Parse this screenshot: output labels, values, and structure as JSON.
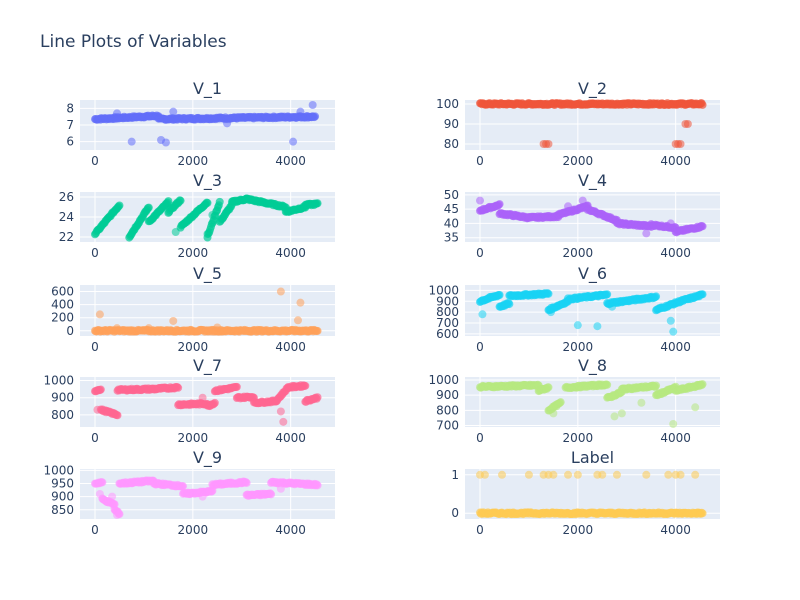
{
  "title": "Line Plots of Variables",
  "chart_data": {
    "type": "scatter",
    "x_range": [
      0,
      4600
    ],
    "colors": [
      "#636efa",
      "#ef553b",
      "#00cc96",
      "#ab63fa",
      "#ffa15a",
      "#19d3f3",
      "#ff6692",
      "#b6e880",
      "#ff97ff",
      "#fecb52"
    ],
    "panels": [
      {
        "name": "V_1",
        "ylim": [
          5.5,
          8.5
        ],
        "yticks": [
          6,
          7,
          8
        ],
        "xticks": [
          0,
          2000,
          4000
        ],
        "segments": [
          [
            0,
            1300,
            7.35,
            7.55
          ],
          [
            1300,
            4500,
            7.35,
            7.5
          ]
        ],
        "points": [
          [
            750,
            6.0
          ],
          [
            1350,
            6.1
          ],
          [
            1450,
            5.95
          ],
          [
            1600,
            7.8
          ],
          [
            4050,
            6.0
          ],
          [
            4200,
            7.8
          ],
          [
            4450,
            8.2
          ],
          [
            2700,
            7.1
          ],
          [
            450,
            7.7
          ]
        ]
      },
      {
        "name": "V_2",
        "ylim": [
          77,
          102
        ],
        "yticks": [
          80,
          90,
          100
        ],
        "xticks": [
          0,
          2000,
          4000
        ],
        "segments": [
          [
            0,
            4550,
            100,
            100
          ]
        ],
        "points": [
          [
            1300,
            80
          ],
          [
            1350,
            80
          ],
          [
            1400,
            80
          ],
          [
            4000,
            80
          ],
          [
            4050,
            80
          ],
          [
            4100,
            80
          ],
          [
            4200,
            90
          ],
          [
            4250,
            90
          ]
        ]
      },
      {
        "name": "V_3",
        "ylim": [
          21.5,
          26.5
        ],
        "yticks": [
          22,
          24,
          26
        ],
        "xticks": [
          0,
          2000,
          4000
        ],
        "segments": [
          [
            0,
            500,
            22.3,
            25.2
          ],
          [
            700,
            1100,
            22.0,
            25.0
          ],
          [
            1100,
            1500,
            23.5,
            25.5
          ],
          [
            1500,
            1750,
            24.5,
            25.7
          ],
          [
            1750,
            2300,
            23.0,
            25.5
          ],
          [
            2300,
            2550,
            22.0,
            25.5
          ],
          [
            2550,
            2800,
            23.5,
            25.2
          ],
          [
            2800,
            3100,
            25.5,
            25.8
          ],
          [
            3100,
            3900,
            25.8,
            25.0
          ],
          [
            3900,
            4300,
            24.5,
            25.0
          ],
          [
            4300,
            4550,
            25.2,
            25.3
          ]
        ],
        "points": [
          [
            1650,
            22.5
          ],
          [
            2300,
            22.3
          ],
          [
            2400,
            24.2
          ]
        ]
      },
      {
        "name": "V_4",
        "ylim": [
          33.5,
          51
        ],
        "yticks": [
          35,
          40,
          45,
          50
        ],
        "xticks": [
          0,
          2000,
          4000
        ],
        "segments": [
          [
            0,
            400,
            44.5,
            46.5
          ],
          [
            400,
            1000,
            43.5,
            42
          ],
          [
            1000,
            1600,
            42,
            42.5
          ],
          [
            1600,
            2200,
            43,
            46
          ],
          [
            2200,
            2800,
            45,
            41
          ],
          [
            2800,
            3500,
            40,
            39
          ],
          [
            3500,
            4000,
            39.5,
            38.5
          ],
          [
            4000,
            4550,
            37,
            39
          ]
        ],
        "points": [
          [
            0,
            48
          ],
          [
            2100,
            48
          ],
          [
            1800,
            46
          ],
          [
            3400,
            36.5
          ],
          [
            3900,
            40
          ]
        ]
      },
      {
        "name": "V_5",
        "ylim": [
          -80,
          700
        ],
        "yticks": [
          0,
          200,
          400,
          600
        ],
        "xticks": [
          0,
          2000,
          4000
        ],
        "segments": [
          [
            0,
            4550,
            0,
            0
          ]
        ],
        "points": [
          [
            100,
            250
          ],
          [
            1600,
            150
          ],
          [
            3800,
            600
          ],
          [
            4200,
            430
          ],
          [
            4150,
            160
          ],
          [
            2500,
            50
          ],
          [
            450,
            40
          ],
          [
            1100,
            40
          ]
        ]
      },
      {
        "name": "V_6",
        "ylim": [
          580,
          1050
        ],
        "yticks": [
          600,
          700,
          800,
          900,
          1000
        ],
        "xticks": [
          0,
          2000,
          4000
        ],
        "segments": [
          [
            0,
            400,
            900,
            960
          ],
          [
            400,
            600,
            850,
            880
          ],
          [
            600,
            1400,
            950,
            970
          ],
          [
            1400,
            1800,
            820,
            900
          ],
          [
            1800,
            2600,
            920,
            960
          ],
          [
            2600,
            3600,
            880,
            940
          ],
          [
            3600,
            4100,
            820,
            900
          ],
          [
            4100,
            4550,
            900,
            960
          ]
        ],
        "points": [
          [
            50,
            780
          ],
          [
            1450,
            800
          ],
          [
            2000,
            680
          ],
          [
            2400,
            670
          ],
          [
            3950,
            620
          ],
          [
            3900,
            720
          ],
          [
            2700,
            850
          ]
        ]
      },
      {
        "name": "V_7",
        "ylim": [
          730,
          1020
        ],
        "yticks": [
          800,
          900,
          1000
        ],
        "xticks": [
          0,
          2000,
          4000
        ],
        "segments": [
          [
            0,
            120,
            940,
            950
          ],
          [
            120,
            460,
            830,
            800
          ],
          [
            460,
            1200,
            945,
            950
          ],
          [
            1200,
            1700,
            950,
            960
          ],
          [
            1700,
            2300,
            860,
            865
          ],
          [
            2300,
            2450,
            850,
            870
          ],
          [
            2450,
            2900,
            940,
            960
          ],
          [
            2900,
            3250,
            900,
            905
          ],
          [
            3250,
            3700,
            870,
            880
          ],
          [
            3700,
            3950,
            880,
            960
          ],
          [
            3950,
            4300,
            960,
            970
          ],
          [
            4300,
            4550,
            880,
            900
          ]
        ],
        "points": [
          [
            50,
            830
          ],
          [
            3850,
            760
          ],
          [
            3800,
            820
          ],
          [
            2200,
            900
          ]
        ]
      },
      {
        "name": "V_8",
        "ylim": [
          690,
          1020
        ],
        "yticks": [
          700,
          800,
          900,
          1000
        ],
        "xticks": [
          0,
          2000,
          4000
        ],
        "segments": [
          [
            0,
            1200,
            955,
            965
          ],
          [
            1200,
            1400,
            930,
            950
          ],
          [
            1400,
            1650,
            800,
            850
          ],
          [
            1750,
            2600,
            950,
            970
          ],
          [
            2600,
            2900,
            880,
            920
          ],
          [
            2900,
            3600,
            940,
            960
          ],
          [
            3600,
            4000,
            900,
            950
          ],
          [
            4000,
            4550,
            930,
            970
          ]
        ],
        "points": [
          [
            2750,
            760
          ],
          [
            3950,
            710
          ],
          [
            2900,
            780
          ],
          [
            4400,
            820
          ],
          [
            1500,
            780
          ],
          [
            3300,
            850
          ]
        ]
      },
      {
        "name": "V_9",
        "ylim": [
          815,
          1005
        ],
        "yticks": [
          850,
          900,
          950,
          1000
        ],
        "xticks": [
          0,
          2000,
          4000
        ],
        "segments": [
          [
            0,
            150,
            950,
            955
          ],
          [
            150,
            400,
            890,
            870
          ],
          [
            400,
            500,
            850,
            835
          ],
          [
            500,
            1200,
            950,
            960
          ],
          [
            1200,
            1800,
            950,
            940
          ],
          [
            1800,
            2400,
            910,
            920
          ],
          [
            2400,
            3100,
            945,
            955
          ],
          [
            3100,
            3600,
            905,
            910
          ],
          [
            3600,
            4550,
            955,
            945
          ]
        ],
        "points": [
          [
            100,
            910
          ],
          [
            350,
            900
          ],
          [
            450,
            830
          ],
          [
            2200,
            900
          ],
          [
            3800,
            930
          ]
        ]
      },
      {
        "name": "Label",
        "ylim": [
          -0.15,
          1.15
        ],
        "yticks": [
          0,
          1
        ],
        "xticks": [
          0,
          2000,
          4000
        ],
        "segments": [
          [
            0,
            4550,
            0,
            0
          ]
        ],
        "points": [
          [
            0,
            1
          ],
          [
            100,
            1
          ],
          [
            450,
            1
          ],
          [
            1000,
            1
          ],
          [
            1300,
            1
          ],
          [
            1400,
            1
          ],
          [
            1500,
            1
          ],
          [
            1800,
            1
          ],
          [
            2000,
            1
          ],
          [
            2400,
            1
          ],
          [
            2500,
            1
          ],
          [
            2800,
            1
          ],
          [
            3400,
            1
          ],
          [
            3850,
            1
          ],
          [
            4000,
            1
          ],
          [
            4100,
            1
          ],
          [
            4400,
            1
          ]
        ]
      }
    ]
  }
}
